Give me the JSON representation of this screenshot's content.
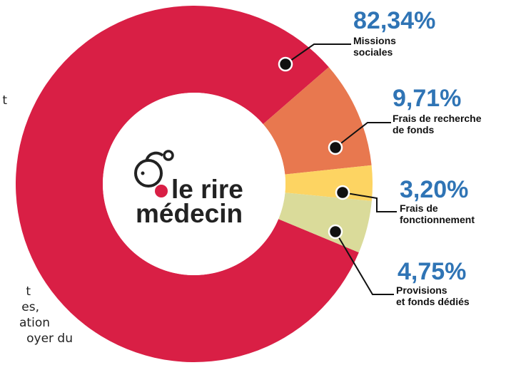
{
  "chart_data": {
    "type": "donut",
    "categories": [
      [
        "Missions",
        "sociales"
      ],
      [
        "Frais de recherche",
        "de fonds"
      ],
      [
        "Frais de",
        "fonctionnement"
      ],
      [
        "Provisions",
        "et fonds dédiés"
      ]
    ],
    "values": [
      82.34,
      9.71,
      3.2,
      4.75
    ],
    "value_labels": [
      "82,34%",
      "9,71%",
      "3,20%",
      "4,75%"
    ],
    "colors": [
      "#d91f45",
      "#e8784f",
      "#fdd462",
      "#dadb9a"
    ]
  },
  "logo": [
    "le rire",
    "médecin"
  ],
  "side_text": [
    "t",
    "t",
    "es,",
    "ation",
    "oyer du"
  ]
}
